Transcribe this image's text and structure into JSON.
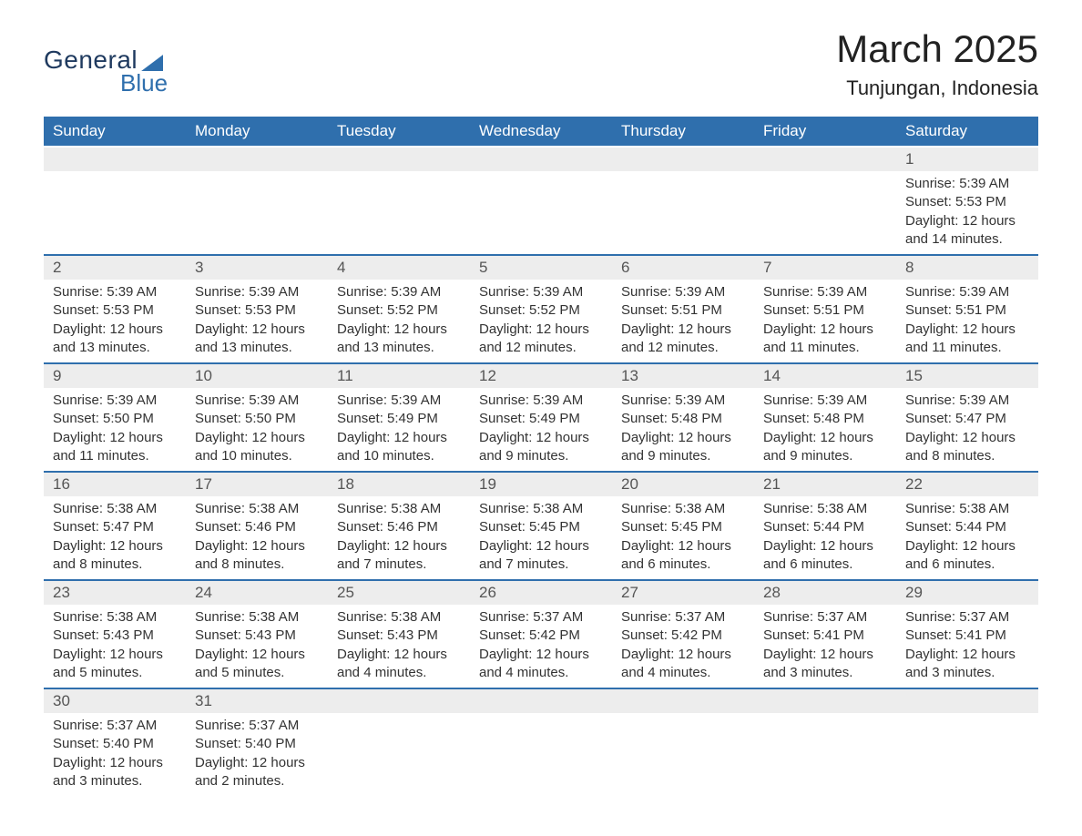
{
  "logo": {
    "text_general": "General",
    "text_blue": "Blue"
  },
  "title": "March 2025",
  "location": "Tunjungan, Indonesia",
  "columns": [
    "Sunday",
    "Monday",
    "Tuesday",
    "Wednesday",
    "Thursday",
    "Friday",
    "Saturday"
  ],
  "colors": {
    "header_bg": "#2f6fad",
    "header_text": "#ffffff",
    "day_number_bg": "#ededed",
    "border": "#2f6fad",
    "text": "#333333",
    "logo_dark": "#1f3a5f",
    "logo_blue": "#2f6fad"
  },
  "weeks": [
    [
      null,
      null,
      null,
      null,
      null,
      null,
      {
        "n": "1",
        "sunrise": "Sunrise: 5:39 AM",
        "sunset": "Sunset: 5:53 PM",
        "daylight": "Daylight: 12 hours and 14 minutes."
      }
    ],
    [
      {
        "n": "2",
        "sunrise": "Sunrise: 5:39 AM",
        "sunset": "Sunset: 5:53 PM",
        "daylight": "Daylight: 12 hours and 13 minutes."
      },
      {
        "n": "3",
        "sunrise": "Sunrise: 5:39 AM",
        "sunset": "Sunset: 5:53 PM",
        "daylight": "Daylight: 12 hours and 13 minutes."
      },
      {
        "n": "4",
        "sunrise": "Sunrise: 5:39 AM",
        "sunset": "Sunset: 5:52 PM",
        "daylight": "Daylight: 12 hours and 13 minutes."
      },
      {
        "n": "5",
        "sunrise": "Sunrise: 5:39 AM",
        "sunset": "Sunset: 5:52 PM",
        "daylight": "Daylight: 12 hours and 12 minutes."
      },
      {
        "n": "6",
        "sunrise": "Sunrise: 5:39 AM",
        "sunset": "Sunset: 5:51 PM",
        "daylight": "Daylight: 12 hours and 12 minutes."
      },
      {
        "n": "7",
        "sunrise": "Sunrise: 5:39 AM",
        "sunset": "Sunset: 5:51 PM",
        "daylight": "Daylight: 12 hours and 11 minutes."
      },
      {
        "n": "8",
        "sunrise": "Sunrise: 5:39 AM",
        "sunset": "Sunset: 5:51 PM",
        "daylight": "Daylight: 12 hours and 11 minutes."
      }
    ],
    [
      {
        "n": "9",
        "sunrise": "Sunrise: 5:39 AM",
        "sunset": "Sunset: 5:50 PM",
        "daylight": "Daylight: 12 hours and 11 minutes."
      },
      {
        "n": "10",
        "sunrise": "Sunrise: 5:39 AM",
        "sunset": "Sunset: 5:50 PM",
        "daylight": "Daylight: 12 hours and 10 minutes."
      },
      {
        "n": "11",
        "sunrise": "Sunrise: 5:39 AM",
        "sunset": "Sunset: 5:49 PM",
        "daylight": "Daylight: 12 hours and 10 minutes."
      },
      {
        "n": "12",
        "sunrise": "Sunrise: 5:39 AM",
        "sunset": "Sunset: 5:49 PM",
        "daylight": "Daylight: 12 hours and 9 minutes."
      },
      {
        "n": "13",
        "sunrise": "Sunrise: 5:39 AM",
        "sunset": "Sunset: 5:48 PM",
        "daylight": "Daylight: 12 hours and 9 minutes."
      },
      {
        "n": "14",
        "sunrise": "Sunrise: 5:39 AM",
        "sunset": "Sunset: 5:48 PM",
        "daylight": "Daylight: 12 hours and 9 minutes."
      },
      {
        "n": "15",
        "sunrise": "Sunrise: 5:39 AM",
        "sunset": "Sunset: 5:47 PM",
        "daylight": "Daylight: 12 hours and 8 minutes."
      }
    ],
    [
      {
        "n": "16",
        "sunrise": "Sunrise: 5:38 AM",
        "sunset": "Sunset: 5:47 PM",
        "daylight": "Daylight: 12 hours and 8 minutes."
      },
      {
        "n": "17",
        "sunrise": "Sunrise: 5:38 AM",
        "sunset": "Sunset: 5:46 PM",
        "daylight": "Daylight: 12 hours and 8 minutes."
      },
      {
        "n": "18",
        "sunrise": "Sunrise: 5:38 AM",
        "sunset": "Sunset: 5:46 PM",
        "daylight": "Daylight: 12 hours and 7 minutes."
      },
      {
        "n": "19",
        "sunrise": "Sunrise: 5:38 AM",
        "sunset": "Sunset: 5:45 PM",
        "daylight": "Daylight: 12 hours and 7 minutes."
      },
      {
        "n": "20",
        "sunrise": "Sunrise: 5:38 AM",
        "sunset": "Sunset: 5:45 PM",
        "daylight": "Daylight: 12 hours and 6 minutes."
      },
      {
        "n": "21",
        "sunrise": "Sunrise: 5:38 AM",
        "sunset": "Sunset: 5:44 PM",
        "daylight": "Daylight: 12 hours and 6 minutes."
      },
      {
        "n": "22",
        "sunrise": "Sunrise: 5:38 AM",
        "sunset": "Sunset: 5:44 PM",
        "daylight": "Daylight: 12 hours and 6 minutes."
      }
    ],
    [
      {
        "n": "23",
        "sunrise": "Sunrise: 5:38 AM",
        "sunset": "Sunset: 5:43 PM",
        "daylight": "Daylight: 12 hours and 5 minutes."
      },
      {
        "n": "24",
        "sunrise": "Sunrise: 5:38 AM",
        "sunset": "Sunset: 5:43 PM",
        "daylight": "Daylight: 12 hours and 5 minutes."
      },
      {
        "n": "25",
        "sunrise": "Sunrise: 5:38 AM",
        "sunset": "Sunset: 5:43 PM",
        "daylight": "Daylight: 12 hours and 4 minutes."
      },
      {
        "n": "26",
        "sunrise": "Sunrise: 5:37 AM",
        "sunset": "Sunset: 5:42 PM",
        "daylight": "Daylight: 12 hours and 4 minutes."
      },
      {
        "n": "27",
        "sunrise": "Sunrise: 5:37 AM",
        "sunset": "Sunset: 5:42 PM",
        "daylight": "Daylight: 12 hours and 4 minutes."
      },
      {
        "n": "28",
        "sunrise": "Sunrise: 5:37 AM",
        "sunset": "Sunset: 5:41 PM",
        "daylight": "Daylight: 12 hours and 3 minutes."
      },
      {
        "n": "29",
        "sunrise": "Sunrise: 5:37 AM",
        "sunset": "Sunset: 5:41 PM",
        "daylight": "Daylight: 12 hours and 3 minutes."
      }
    ],
    [
      {
        "n": "30",
        "sunrise": "Sunrise: 5:37 AM",
        "sunset": "Sunset: 5:40 PM",
        "daylight": "Daylight: 12 hours and 3 minutes."
      },
      {
        "n": "31",
        "sunrise": "Sunrise: 5:37 AM",
        "sunset": "Sunset: 5:40 PM",
        "daylight": "Daylight: 12 hours and 2 minutes."
      },
      null,
      null,
      null,
      null,
      null
    ]
  ]
}
